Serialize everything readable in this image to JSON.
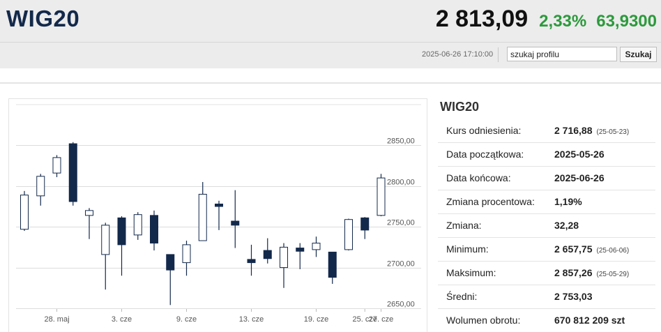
{
  "header": {
    "title": "WIG20",
    "price": "2 813,09",
    "change_pct": "2,33%",
    "change_abs": "63,9300",
    "timestamp": "2025-06-26 17:10:00",
    "search_value": "szukaj profilu",
    "search_button": "Szukaj"
  },
  "info": {
    "title": "WIG20",
    "rows": [
      {
        "label": "Kurs odniesienia:",
        "value": "2 716,88",
        "sub": "(25-05-23)"
      },
      {
        "label": "Data początkowa:",
        "value": "2025-05-26"
      },
      {
        "label": "Data końcowa:",
        "value": "2025-06-26"
      },
      {
        "label": "Zmiana procentowa:",
        "value": "1,19%"
      },
      {
        "label": "Zmiana:",
        "value": "32,28"
      },
      {
        "label": "Minimum:",
        "value": "2 657,75",
        "sub": "(25-06-06)"
      },
      {
        "label": "Maksimum:",
        "value": "2 857,26",
        "sub": "(25-05-29)"
      },
      {
        "label": "Średni:",
        "value": "2 753,03"
      },
      {
        "label": "Wolumen obrotu:",
        "value": "670 812 209 szt"
      }
    ]
  },
  "colors": {
    "title": "#13294b",
    "up": "#2c9a3c",
    "candle_down": "#13294b",
    "candle_up": "#ffffff"
  },
  "chart_data": {
    "type": "candlestick",
    "ylim": [
      2650,
      2900
    ],
    "y_ticks": [
      2650,
      2700,
      2750,
      2800,
      2850
    ],
    "y_tick_labels": [
      "2650,00",
      "2700,00",
      "2750,00",
      "2800,00",
      "2850,00"
    ],
    "x_tick_labels": [
      {
        "index": 2,
        "label": "28. maj"
      },
      {
        "index": 6,
        "label": "3. cze"
      },
      {
        "index": 10,
        "label": "9. cze"
      },
      {
        "index": 14,
        "label": "13. cze"
      },
      {
        "index": 18,
        "label": "19. cze"
      },
      {
        "index": 21,
        "label": "25. cze"
      },
      {
        "index": 22,
        "label": "27. cze"
      }
    ],
    "candles": [
      {
        "open": 2747,
        "close": 2789,
        "high": 2794,
        "low": 2745
      },
      {
        "open": 2788,
        "close": 2812,
        "high": 2815,
        "low": 2776
      },
      {
        "open": 2816,
        "close": 2835,
        "high": 2838,
        "low": 2811
      },
      {
        "open": 2852,
        "close": 2781,
        "high": 2854,
        "low": 2776
      },
      {
        "open": 2764,
        "close": 2770,
        "high": 2773,
        "low": 2735
      },
      {
        "open": 2716,
        "close": 2752,
        "high": 2755,
        "low": 2673
      },
      {
        "open": 2761,
        "close": 2728,
        "high": 2763,
        "low": 2690
      },
      {
        "open": 2740,
        "close": 2765,
        "high": 2768,
        "low": 2734
      },
      {
        "open": 2764,
        "close": 2730,
        "high": 2770,
        "low": 2721
      },
      {
        "open": 2716,
        "close": 2697,
        "high": 2716,
        "low": 2654
      },
      {
        "open": 2706,
        "close": 2728,
        "high": 2733,
        "low": 2690
      },
      {
        "open": 2733,
        "close": 2790,
        "high": 2805,
        "low": 2733
      },
      {
        "open": 2778,
        "close": 2775,
        "high": 2782,
        "low": 2746
      },
      {
        "open": 2757,
        "close": 2752,
        "high": 2795,
        "low": 2724
      },
      {
        "open": 2710,
        "close": 2706,
        "high": 2728,
        "low": 2690
      },
      {
        "open": 2721,
        "close": 2711,
        "high": 2736,
        "low": 2705
      },
      {
        "open": 2700,
        "close": 2725,
        "high": 2730,
        "low": 2675
      },
      {
        "open": 2724,
        "close": 2720,
        "high": 2730,
        "low": 2698
      },
      {
        "open": 2722,
        "close": 2730,
        "high": 2738,
        "low": 2713
      },
      {
        "open": 2719,
        "close": 2688,
        "high": 2719,
        "low": 2680
      },
      {
        "open": 2722,
        "close": 2759,
        "high": 2760,
        "low": 2721
      },
      {
        "open": 2761,
        "close": 2746,
        "high": 2762,
        "low": 2735
      },
      {
        "open": 2764,
        "close": 2810,
        "high": 2815,
        "low": 2763
      }
    ]
  }
}
